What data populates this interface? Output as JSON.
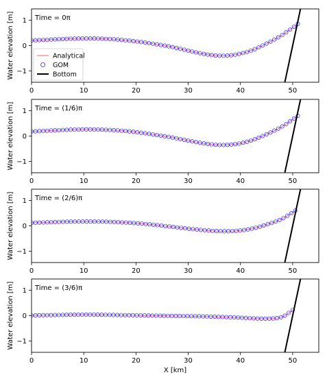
{
  "chart_data": [
    {
      "type": "line",
      "annotation": "Time = 0π",
      "ylabel": "Water elevation [m]",
      "xlabel": "",
      "xlim": [
        0,
        55
      ],
      "ylim": [
        -1.45,
        1.45
      ],
      "xticks": [
        0,
        10,
        20,
        30,
        40,
        50
      ],
      "yticks": [
        -1,
        0,
        1
      ],
      "shoreline_x": 51.0,
      "series": [
        {
          "name": "Analytical",
          "style": "line",
          "x": [
            0,
            3,
            6,
            9,
            12,
            15,
            18,
            21,
            24,
            27,
            30,
            33,
            36,
            39,
            42,
            45,
            48,
            51
          ],
          "y": [
            0.2,
            0.23,
            0.26,
            0.28,
            0.28,
            0.26,
            0.21,
            0.14,
            0.05,
            -0.06,
            -0.2,
            -0.33,
            -0.4,
            -0.36,
            -0.2,
            0.08,
            0.42,
            0.86
          ]
        },
        {
          "name": "GOM",
          "style": "circles",
          "x": [
            0,
            3,
            6,
            9,
            12,
            15,
            18,
            21,
            24,
            27,
            30,
            33,
            36,
            39,
            42,
            45,
            48,
            51
          ],
          "y": [
            0.2,
            0.23,
            0.26,
            0.28,
            0.28,
            0.26,
            0.21,
            0.14,
            0.05,
            -0.06,
            -0.2,
            -0.33,
            -0.4,
            -0.36,
            -0.2,
            0.08,
            0.42,
            0.86
          ]
        },
        {
          "name": "Bottom",
          "style": "line",
          "x": [
            48.5,
            51.5
          ],
          "y": [
            -1.45,
            1.45
          ]
        }
      ],
      "legend": {
        "position": "center-left",
        "entries": [
          "Analytical",
          "GOM",
          "Bottom"
        ]
      }
    },
    {
      "type": "line",
      "annotation": "Time = (1/6)π",
      "ylabel": "Water elevation [m]",
      "xlabel": "",
      "xlim": [
        0,
        55
      ],
      "ylim": [
        -1.45,
        1.45
      ],
      "xticks": [
        0,
        10,
        20,
        30,
        40,
        50
      ],
      "yticks": [
        -1,
        0,
        1
      ],
      "shoreline_x": 51.0,
      "series": [
        {
          "name": "Analytical",
          "style": "line",
          "x": [
            0,
            3,
            6,
            9,
            12,
            15,
            18,
            21,
            24,
            27,
            30,
            33,
            36,
            39,
            42,
            45,
            48,
            51
          ],
          "y": [
            0.18,
            0.21,
            0.24,
            0.26,
            0.26,
            0.24,
            0.2,
            0.13,
            0.04,
            -0.06,
            -0.18,
            -0.29,
            -0.35,
            -0.32,
            -0.18,
            0.07,
            0.38,
            0.8
          ]
        },
        {
          "name": "GOM",
          "style": "circles",
          "x": [
            0,
            3,
            6,
            9,
            12,
            15,
            18,
            21,
            24,
            27,
            30,
            33,
            36,
            39,
            42,
            45,
            48,
            51
          ],
          "y": [
            0.18,
            0.21,
            0.24,
            0.26,
            0.26,
            0.24,
            0.2,
            0.13,
            0.04,
            -0.06,
            -0.18,
            -0.29,
            -0.35,
            -0.32,
            -0.18,
            0.07,
            0.38,
            0.8
          ]
        },
        {
          "name": "Bottom",
          "style": "line",
          "x": [
            48.5,
            51.5
          ],
          "y": [
            -1.45,
            1.45
          ]
        }
      ]
    },
    {
      "type": "line",
      "annotation": "Time = (2/6)π",
      "ylabel": "Water elevation [m]",
      "xlabel": "",
      "xlim": [
        0,
        55
      ],
      "ylim": [
        -1.45,
        1.45
      ],
      "xticks": [
        0,
        10,
        20,
        30,
        40,
        50
      ],
      "yticks": [
        -1,
        0,
        1
      ],
      "shoreline_x": 50.5,
      "series": [
        {
          "name": "Analytical",
          "style": "line",
          "x": [
            0,
            3,
            6,
            9,
            12,
            15,
            18,
            21,
            24,
            27,
            30,
            33,
            36,
            39,
            42,
            45,
            48,
            50.5
          ],
          "y": [
            0.12,
            0.14,
            0.16,
            0.17,
            0.17,
            0.16,
            0.13,
            0.09,
            0.03,
            -0.04,
            -0.11,
            -0.17,
            -0.21,
            -0.2,
            -0.12,
            0.05,
            0.28,
            0.6
          ]
        },
        {
          "name": "GOM",
          "style": "circles",
          "x": [
            0,
            3,
            6,
            9,
            12,
            15,
            18,
            21,
            24,
            27,
            30,
            33,
            36,
            39,
            42,
            45,
            48,
            50.5
          ],
          "y": [
            0.12,
            0.14,
            0.16,
            0.17,
            0.17,
            0.16,
            0.13,
            0.09,
            0.03,
            -0.04,
            -0.11,
            -0.17,
            -0.21,
            -0.2,
            -0.12,
            0.05,
            0.28,
            0.6
          ]
        },
        {
          "name": "Bottom",
          "style": "line",
          "x": [
            48.5,
            51.5
          ],
          "y": [
            -1.45,
            1.45
          ]
        }
      ]
    },
    {
      "type": "line",
      "annotation": "Time = (3/6)π",
      "ylabel": "Water elevation [m]",
      "xlabel": "X [km]",
      "xlim": [
        0,
        55
      ],
      "ylim": [
        -1.45,
        1.45
      ],
      "xticks": [
        0,
        10,
        20,
        30,
        40,
        50
      ],
      "yticks": [
        -1,
        0,
        1
      ],
      "shoreline_x": 50.0,
      "series": [
        {
          "name": "Analytical",
          "style": "line",
          "x": [
            0,
            3,
            6,
            9,
            12,
            15,
            18,
            21,
            24,
            27,
            30,
            33,
            36,
            39,
            42,
            45,
            48,
            50
          ],
          "y": [
            0.01,
            0.02,
            0.03,
            0.04,
            0.04,
            0.03,
            0.02,
            0.01,
            0.0,
            -0.01,
            -0.02,
            -0.03,
            -0.05,
            -0.07,
            -0.1,
            -0.12,
            -0.05,
            0.22
          ]
        },
        {
          "name": "GOM",
          "style": "circles",
          "x": [
            0,
            3,
            6,
            9,
            12,
            15,
            18,
            21,
            24,
            27,
            30,
            33,
            36,
            39,
            42,
            45,
            48,
            50
          ],
          "y": [
            0.01,
            0.02,
            0.03,
            0.04,
            0.04,
            0.03,
            0.02,
            0.01,
            0.0,
            -0.01,
            -0.02,
            -0.03,
            -0.05,
            -0.07,
            -0.1,
            -0.12,
            -0.05,
            0.22
          ]
        },
        {
          "name": "Bottom",
          "style": "line",
          "x": [
            48.5,
            51.5
          ],
          "y": [
            -1.45,
            1.45
          ]
        }
      ]
    }
  ],
  "colors": {
    "analytical": "#f08080",
    "gom": "#2222ff",
    "bottom": "#000000",
    "axes": "#000000"
  }
}
